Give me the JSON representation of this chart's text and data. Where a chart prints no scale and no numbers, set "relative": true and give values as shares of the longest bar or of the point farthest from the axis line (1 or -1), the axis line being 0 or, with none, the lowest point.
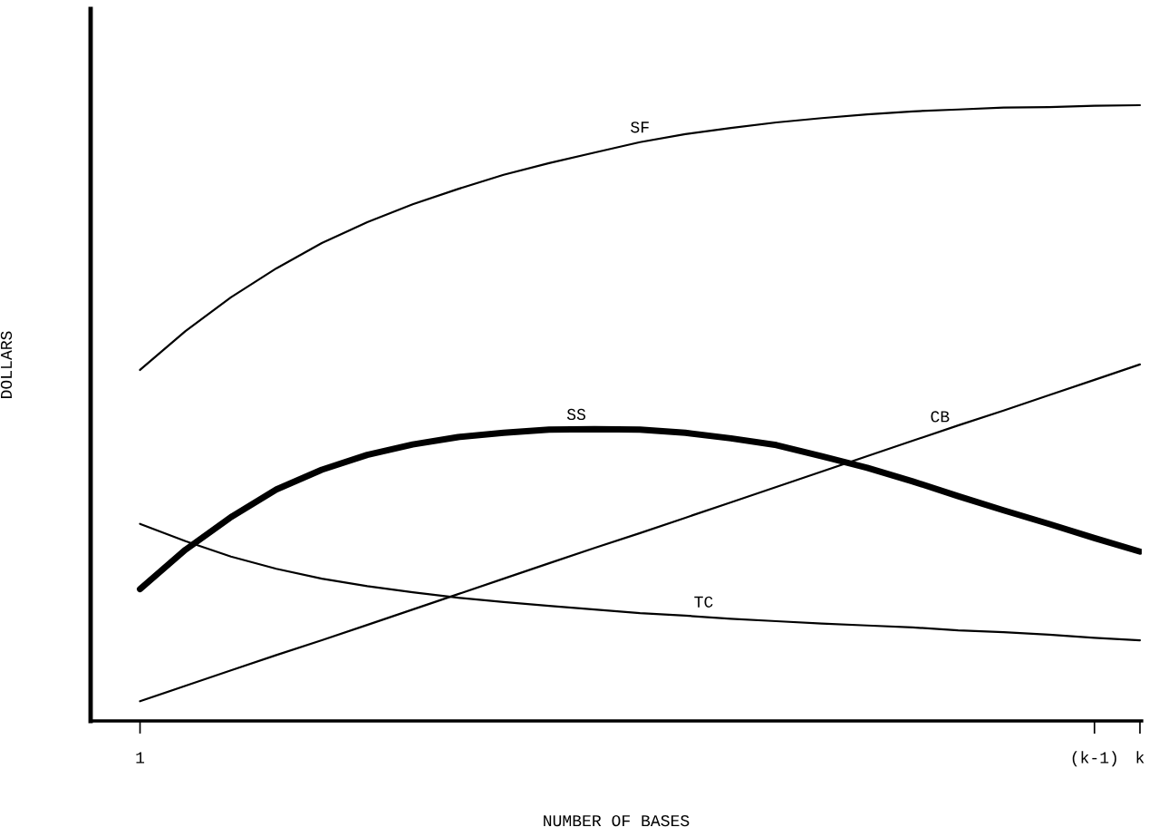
{
  "chart_data": {
    "type": "line",
    "relative": true,
    "xlabel": "NUMBER OF BASES",
    "ylabel": "DOLLARS",
    "categories": [
      "1",
      null,
      null,
      null,
      null,
      null,
      null,
      null,
      null,
      null,
      null,
      null,
      null,
      null,
      null,
      null,
      null,
      null,
      null,
      null,
      null,
      "(k-1)",
      "k"
    ],
    "series": [
      {
        "name": "SF",
        "color": "#000000",
        "values": [
          0.57,
          0.633,
          0.688,
          0.735,
          0.776,
          0.81,
          0.839,
          0.864,
          0.887,
          0.906,
          0.923,
          0.94,
          0.953,
          0.963,
          0.972,
          0.979,
          0.985,
          0.99,
          0.993,
          0.996,
          0.997,
          0.999,
          1.0
        ]
      },
      {
        "name": "SS",
        "color": "#000000",
        "values": [
          0.214,
          0.278,
          0.331,
          0.376,
          0.408,
          0.432,
          0.449,
          0.461,
          0.468,
          0.473,
          0.474,
          0.473,
          0.468,
          0.459,
          0.448,
          0.43,
          0.411,
          0.389,
          0.365,
          0.342,
          0.32,
          0.297,
          0.275
        ]
      },
      {
        "name": "CB",
        "color": "#000000",
        "values": [
          0.032,
          0.057,
          0.082,
          0.107,
          0.131,
          0.156,
          0.181,
          0.206,
          0.231,
          0.256,
          0.281,
          0.305,
          0.33,
          0.355,
          0.38,
          0.405,
          0.43,
          0.455,
          0.48,
          0.504,
          0.529,
          0.554,
          0.579
        ]
      },
      {
        "name": "TC",
        "color": "#000000",
        "values": [
          0.32,
          0.292,
          0.267,
          0.247,
          0.231,
          0.219,
          0.209,
          0.2,
          0.193,
          0.187,
          0.181,
          0.175,
          0.171,
          0.166,
          0.162,
          0.158,
          0.155,
          0.152,
          0.147,
          0.144,
          0.14,
          0.135,
          0.131
        ]
      }
    ]
  }
}
